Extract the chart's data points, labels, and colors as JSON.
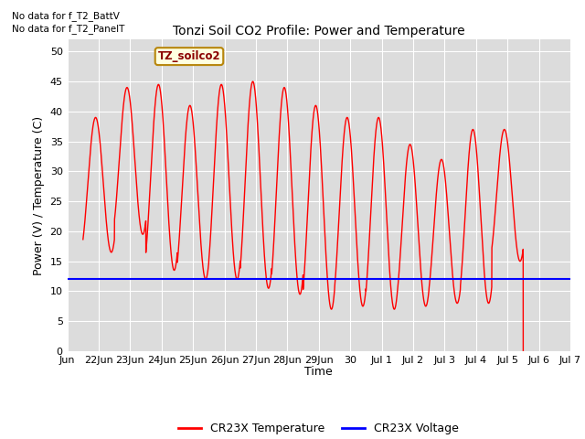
{
  "title": "Tonzi Soil CO2 Profile: Power and Temperature",
  "ylabel": "Power (V) / Temperature (C)",
  "xlabel": "Time",
  "ylim": [
    0,
    52
  ],
  "yticks": [
    0,
    5,
    10,
    15,
    20,
    25,
    30,
    35,
    40,
    45,
    50
  ],
  "no_data_text1": "No data for f_T2_BattV",
  "no_data_text2": "No data for f_T2_PanelT",
  "legend_label_temp": "CR23X Temperature",
  "legend_label_volt": "CR23X Voltage",
  "box_label": "TZ_soilco2",
  "temp_color": "#FF0000",
  "volt_color": "#0000FF",
  "background_color": "#DCDCDC",
  "voltage_value": 12.0,
  "xtick_labels": [
    "Jun",
    "22Jun",
    "23Jun",
    "24Jun",
    "25Jun",
    "26Jun",
    "27Jun",
    "28Jun",
    "29Jun",
    "30",
    "Jul 1",
    "Jul 2",
    "Jul 3",
    "Jul 4",
    "Jul 5",
    "Jul 6",
    "Jul 7"
  ],
  "xtick_positions": [
    0,
    1,
    2,
    3,
    4,
    5,
    6,
    7,
    8,
    9,
    10,
    11,
    12,
    13,
    14,
    15,
    16
  ],
  "peaks": [
    39,
    44,
    44.5,
    41,
    44.5,
    45,
    44,
    41,
    39,
    39,
    34.5,
    32,
    37,
    37
  ],
  "troughs": [
    16.5,
    19.5,
    13.5,
    12,
    12,
    10.5,
    9.5,
    7,
    7.5,
    7,
    7.5,
    8,
    8,
    15
  ],
  "title_fontsize": 10,
  "axis_fontsize": 9,
  "tick_fontsize": 8
}
